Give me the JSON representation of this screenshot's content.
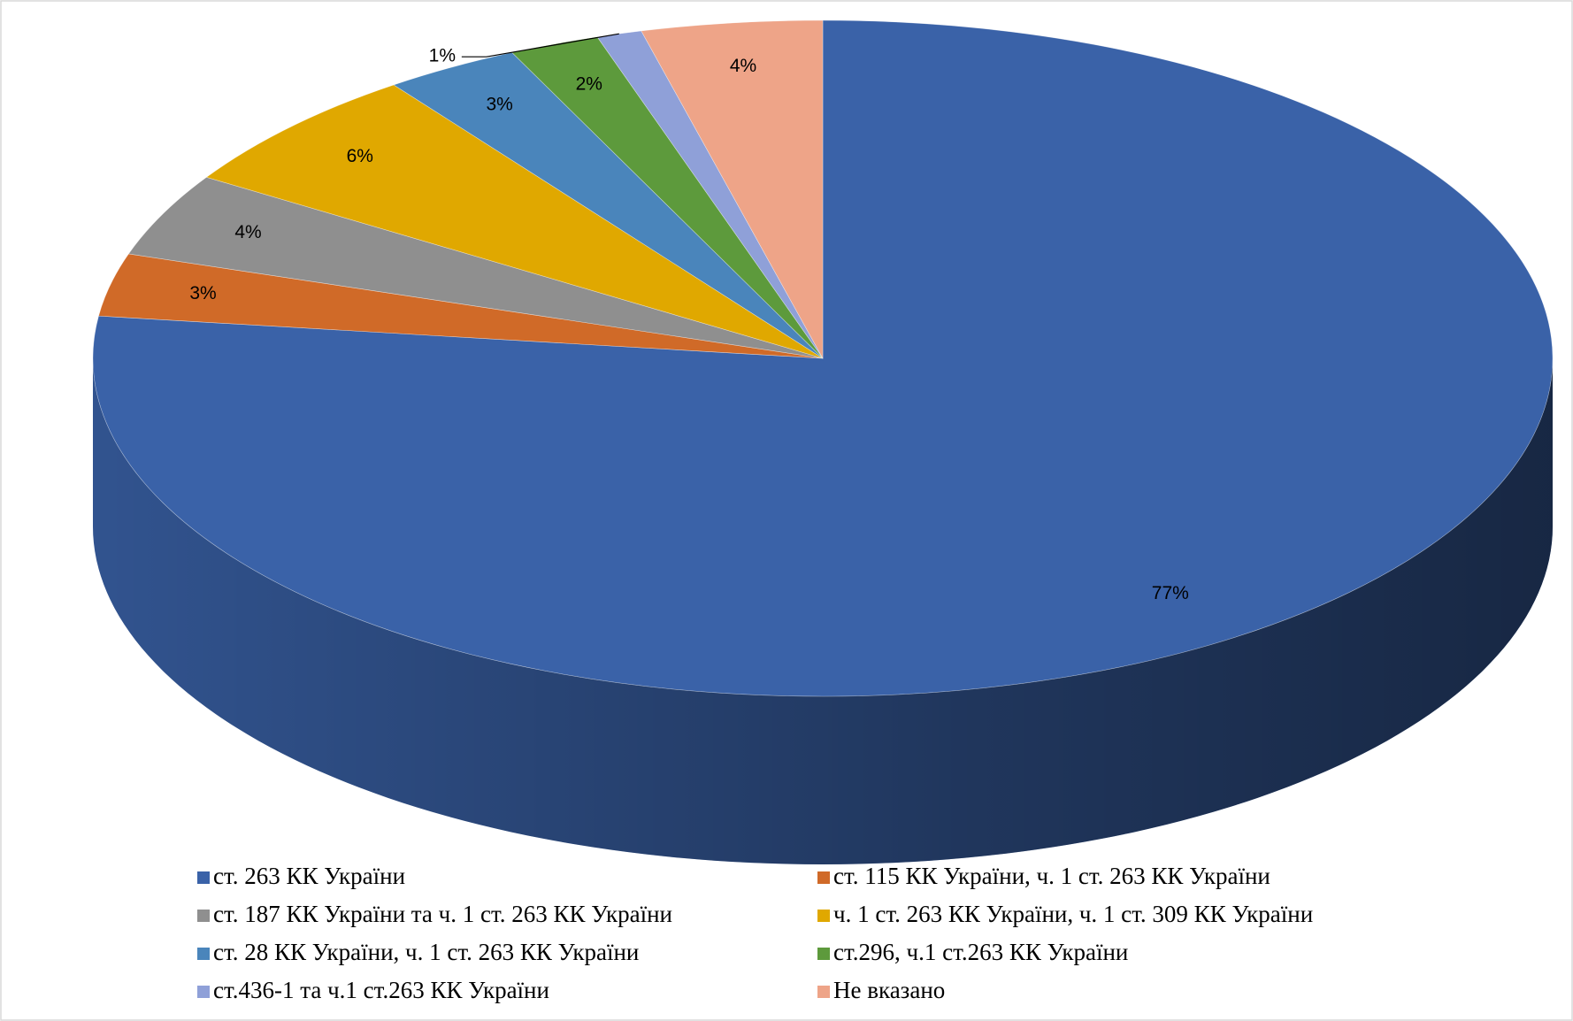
{
  "chart_data": {
    "type": "pie",
    "categories": [
      "ст. 263 КК України",
      "ст. 115 КК України, ч. 1 ст. 263 КК України",
      "ст. 187 КК України та ч. 1 ст. 263 КК України",
      "ч. 1 ст. 263 КК України, ч. 1 ст. 309 КК України",
      "ст. 28 КК України, ч. 1 ст. 263 КК України",
      "ст.296, ч.1 ст.263 КК України",
      "ст.436-1 та ч.1 ст.263 КК України",
      "Не вказано"
    ],
    "values": [
      77,
      3,
      4,
      6,
      3,
      2,
      1,
      4
    ],
    "value_labels": [
      "77%",
      "3%",
      "4%",
      "6%",
      "3%",
      "2%",
      "1%",
      "4%"
    ],
    "colors": [
      "#3a62a8",
      "#d06a28",
      "#8f8f8f",
      "#e0a800",
      "#4a85bb",
      "#5d9a3c",
      "#8fa0d8",
      "#eea488"
    ],
    "legend": "bottom"
  }
}
